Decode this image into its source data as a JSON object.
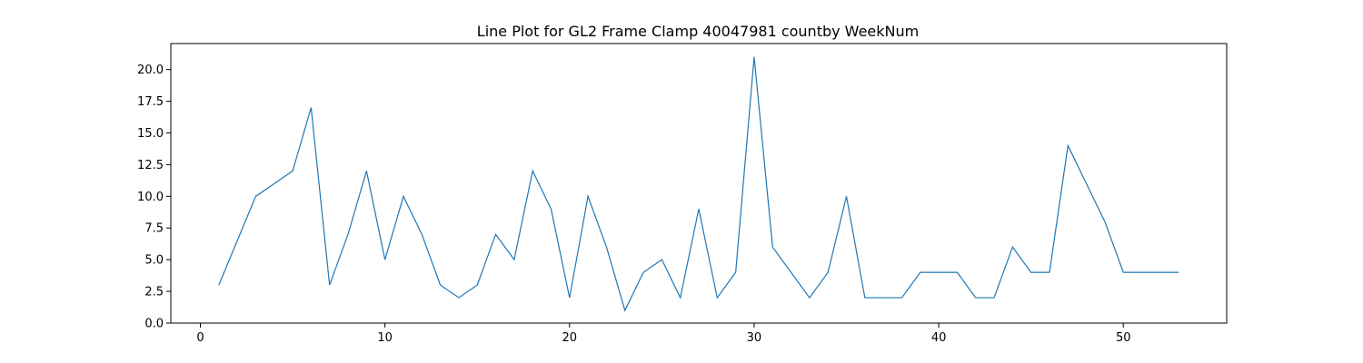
{
  "chart_data": {
    "type": "line",
    "title": "Line Plot for GL2 Frame Clamp 40047981 countby WeekNum",
    "xlabel": "",
    "ylabel": "",
    "xlim": [
      -1.6,
      55.6
    ],
    "ylim": [
      0,
      22.05
    ],
    "xticks": [
      0,
      10,
      20,
      30,
      40,
      50
    ],
    "yticks": [
      0.0,
      2.5,
      5.0,
      7.5,
      10.0,
      12.5,
      15.0,
      17.5,
      20.0
    ],
    "xtick_labels": [
      "0",
      "10",
      "20",
      "30",
      "40",
      "50"
    ],
    "ytick_labels": [
      "0.0",
      "2.5",
      "5.0",
      "7.5",
      "10.0",
      "12.5",
      "15.0",
      "17.5",
      "20.0"
    ],
    "grid": false,
    "series": [
      {
        "color": "#1f77b4",
        "x": [
          1,
          2,
          3,
          4,
          5,
          6,
          7,
          8,
          9,
          10,
          11,
          12,
          13,
          14,
          15,
          16,
          17,
          18,
          19,
          20,
          21,
          22,
          23,
          24,
          25,
          26,
          27,
          28,
          29,
          30,
          31,
          32,
          33,
          34,
          35,
          36,
          37,
          38,
          39,
          40,
          41,
          42,
          43,
          44,
          45,
          46,
          47,
          48,
          49,
          50,
          51,
          52,
          53
        ],
        "y": [
          3,
          6.5,
          10,
          11,
          12,
          17,
          3,
          7,
          12,
          5,
          10,
          7,
          3,
          2,
          3,
          7,
          5,
          12,
          9,
          2,
          10,
          6,
          1,
          4,
          5,
          2,
          9,
          2,
          4,
          21,
          6,
          4,
          2,
          4,
          10,
          2,
          2,
          2,
          4,
          4,
          4,
          2,
          2,
          6,
          4,
          4,
          14,
          11,
          8,
          4,
          4,
          4,
          4
        ]
      }
    ]
  }
}
